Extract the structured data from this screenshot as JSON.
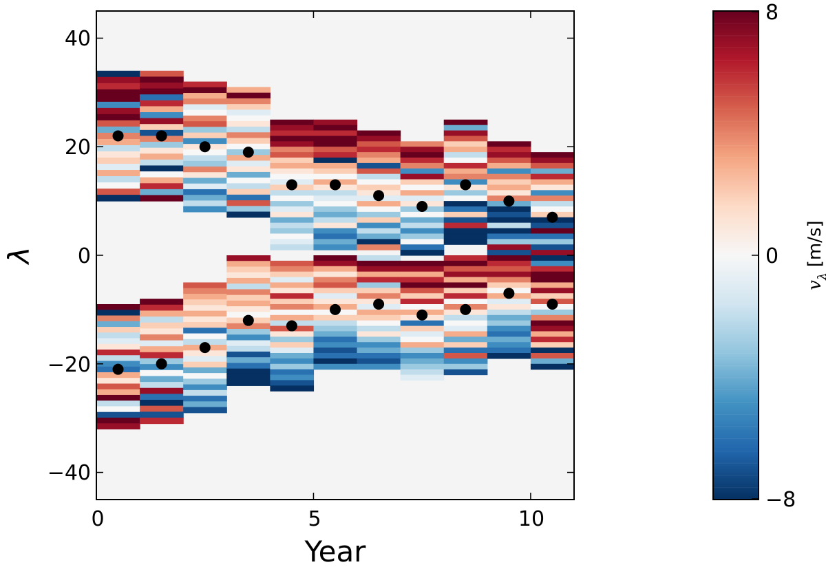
{
  "chart_data": {
    "type": "heatmap",
    "title": "",
    "xlabel": "Year",
    "ylabel": "λ",
    "xlim": [
      0,
      11
    ],
    "ylim": [
      -45,
      45
    ],
    "xticks": [
      "0",
      "5",
      "10"
    ],
    "yticks": [
      "−40",
      "−20",
      "0",
      "20",
      "40"
    ],
    "colorbar": {
      "label_main": "v",
      "label_sub": "λ",
      "label_units": "[m/s]",
      "vmin": -8,
      "vmax": 8,
      "ticks": [
        "8",
        "0",
        "−8"
      ],
      "cmap": "RdBu_r"
    },
    "colors": {
      "background": "#f4f4f4",
      "marker": "#000000",
      "cmap_stops": [
        "#053061",
        "#2166ac",
        "#4393c3",
        "#92c5de",
        "#d1e5f0",
        "#f7f7f7",
        "#fddbc7",
        "#f4a582",
        "#d6604d",
        "#b2182b",
        "#67001f"
      ]
    },
    "bands": [
      {
        "year": 0,
        "n_top": [
          10,
          34
        ],
        "s_top": [
          -32,
          -9
        ],
        "n_vals": [
          -8,
          7,
          6,
          8,
          8,
          -5,
          7,
          8,
          5,
          -4,
          4,
          3,
          -2,
          1,
          2,
          -1,
          3,
          -2,
          0,
          5,
          -8
        ],
        "s_vals": [
          8,
          -8,
          4,
          -4,
          2,
          -2,
          -1,
          1,
          6,
          -2,
          -5,
          -6,
          3,
          1,
          5,
          3,
          8,
          -2,
          0,
          -7,
          8,
          7
        ]
      },
      {
        "year": 1,
        "n_top": [
          10,
          34
        ],
        "s_top": [
          -31,
          -8
        ],
        "n_vals": [
          5,
          8,
          7,
          8,
          -6,
          6,
          3,
          -5,
          7,
          2,
          -7,
          4,
          -3,
          1,
          3,
          -2,
          -8,
          0,
          3,
          6,
          -4,
          8
        ],
        "s_vals": [
          8,
          6,
          3,
          -2,
          2,
          1,
          4,
          -1,
          3,
          6,
          -3,
          -5,
          0,
          -4,
          -2,
          7,
          -6,
          -8,
          5,
          -7,
          6
        ]
      },
      {
        "year": 2,
        "n_top": [
          8,
          32
        ],
        "s_top": [
          -29,
          -5
        ],
        "n_vals": [
          6,
          8,
          3,
          4,
          -1,
          0,
          4,
          5,
          -3,
          2,
          -5,
          1,
          0,
          -2,
          -3,
          4,
          1,
          -4,
          -1,
          -6,
          -4,
          -2,
          -5
        ],
        "s_vals": [
          5,
          4,
          3,
          2,
          1,
          3,
          1,
          2,
          -6,
          0,
          -2,
          3,
          1,
          -1,
          2,
          -4,
          0,
          -3,
          -5,
          -2,
          -6,
          -4,
          -7
        ]
      },
      {
        "year": 3,
        "n_top": [
          7,
          31
        ],
        "s_top": [
          -24,
          0
        ],
        "n_vals": [
          3,
          8,
          4,
          2,
          -1,
          0,
          1,
          -2,
          4,
          2,
          0,
          -3,
          3,
          -1,
          1,
          -4,
          0,
          -2,
          2,
          -6,
          5,
          -3,
          -8
        ],
        "s_vals": [
          7,
          3,
          2,
          1,
          3,
          -2,
          4,
          2,
          3,
          1,
          0,
          2,
          4,
          -3,
          -5,
          -1,
          -2,
          -7,
          -4,
          -6,
          -8,
          -8,
          -8
        ]
      },
      {
        "year": 4,
        "n_top": [
          1,
          25
        ],
        "s_top": [
          -25,
          -1
        ],
        "n_vals": [
          8,
          7,
          6,
          8,
          7,
          4,
          5,
          2,
          3,
          1,
          0,
          -1,
          2,
          -2,
          0,
          -3,
          -1,
          1,
          -4,
          -2,
          -3,
          0,
          -1,
          -2
        ],
        "s_vals": [
          5,
          4,
          2,
          -1,
          3,
          1,
          6,
          2,
          4,
          0,
          3,
          -2,
          5,
          1,
          -3,
          2,
          -1,
          -4,
          -5,
          -3,
          -6,
          -5,
          -7,
          -8
        ]
      },
      {
        "year": 5,
        "n_top": [
          1,
          25
        ],
        "s_top": [
          -21,
          0
        ],
        "n_vals": [
          7,
          8,
          6,
          8,
          8,
          5,
          6,
          -8,
          3,
          2,
          0,
          3,
          1,
          -2,
          -1,
          0,
          -3,
          -4,
          -2,
          1,
          -5,
          -6,
          -4,
          -5
        ],
        "s_vals": [
          8,
          7,
          3,
          1,
          4,
          5,
          2,
          -1,
          1,
          3,
          0,
          2,
          -2,
          -3,
          -4,
          -6,
          -5,
          -7,
          -6,
          -8,
          -5
        ]
      },
      {
        "year": 6,
        "n_top": [
          1,
          23
        ],
        "s_top": [
          -21,
          0
        ],
        "n_vals": [
          8,
          7,
          5,
          6,
          4,
          3,
          -7,
          5,
          -2,
          0,
          2,
          1,
          -1,
          3,
          0,
          -3,
          2,
          -5,
          -2,
          -4,
          -8,
          4
        ],
        "s_vals": [
          -2,
          8,
          7,
          3,
          6,
          -3,
          2,
          4,
          1,
          -1,
          3,
          2,
          0,
          -2,
          1,
          -3,
          -5,
          -4,
          -6,
          -7,
          -5
        ]
      },
      {
        "year": 7,
        "n_top": [
          0,
          21
        ],
        "s_top": [
          -23,
          -1
        ],
        "n_vals": [
          4,
          7,
          8,
          6,
          4,
          -5,
          7,
          2,
          0,
          3,
          -1,
          1,
          -3,
          0,
          -4,
          -2,
          -5,
          -3,
          0,
          -6,
          -8
        ],
        "s_vals": [
          8,
          7,
          3,
          6,
          8,
          5,
          2,
          6,
          0,
          3,
          1,
          -6,
          2,
          -1,
          0,
          3,
          -3,
          -5,
          -4,
          -3,
          -2,
          -1
        ]
      },
      {
        "year": 8,
        "n_top": [
          2,
          25
        ],
        "s_top": [
          -22,
          0
        ],
        "n_vals": [
          8,
          -4,
          7,
          5,
          2,
          3,
          -2,
          0,
          6,
          3,
          4,
          -5,
          1,
          -3,
          0,
          -8,
          -6,
          2,
          -7,
          6,
          -8,
          -8,
          -8
        ],
        "s_vals": [
          6,
          8,
          5,
          7,
          3,
          8,
          2,
          6,
          0,
          4,
          1,
          -2,
          0,
          -1,
          3,
          -4,
          2,
          -6,
          5,
          -5,
          -3,
          -7
        ]
      },
      {
        "year": 9,
        "n_top": [
          0,
          21
        ],
        "s_top": [
          -19,
          0
        ],
        "n_vals": [
          8,
          6,
          7,
          5,
          3,
          -5,
          4,
          2,
          3,
          1,
          4,
          -4,
          -8,
          -7,
          -8,
          -2,
          -8,
          -6,
          -3,
          7,
          -7
        ],
        "s_vals": [
          8,
          6,
          5,
          7,
          4,
          2,
          0,
          3,
          -1,
          1,
          -2,
          -4,
          -3,
          -5,
          -6,
          -4,
          -5,
          -6,
          -8
        ]
      },
      {
        "year": 10,
        "n_top": [
          0,
          19
        ],
        "s_top": [
          -21,
          0
        ],
        "n_vals": [
          8,
          7,
          5,
          -4,
          6,
          3,
          1,
          -5,
          4,
          -2,
          0,
          2,
          -8,
          -7,
          8,
          -6,
          -3,
          -7,
          7
        ],
        "s_vals": [
          -8,
          -5,
          6,
          8,
          8,
          3,
          7,
          2,
          5,
          0,
          -3,
          4,
          8,
          7,
          3,
          6,
          2,
          -8,
          5,
          -4,
          -8
        ]
      }
    ],
    "series": [
      {
        "name": "north_centroids",
        "x": [
          0.5,
          1.5,
          2.5,
          3.5,
          4.5,
          5.5,
          6.5,
          7.5,
          8.5,
          9.5,
          10.5
        ],
        "y": [
          22,
          22,
          20,
          19,
          13,
          13,
          11,
          9,
          13,
          10,
          7
        ]
      },
      {
        "name": "south_centroids",
        "x": [
          0.5,
          1.5,
          2.5,
          3.5,
          4.5,
          5.5,
          6.5,
          7.5,
          8.5,
          9.5,
          10.5
        ],
        "y": [
          -21,
          -20,
          -17,
          -12,
          -13,
          -10,
          -9,
          -11,
          -10,
          -7,
          -9
        ]
      }
    ]
  }
}
